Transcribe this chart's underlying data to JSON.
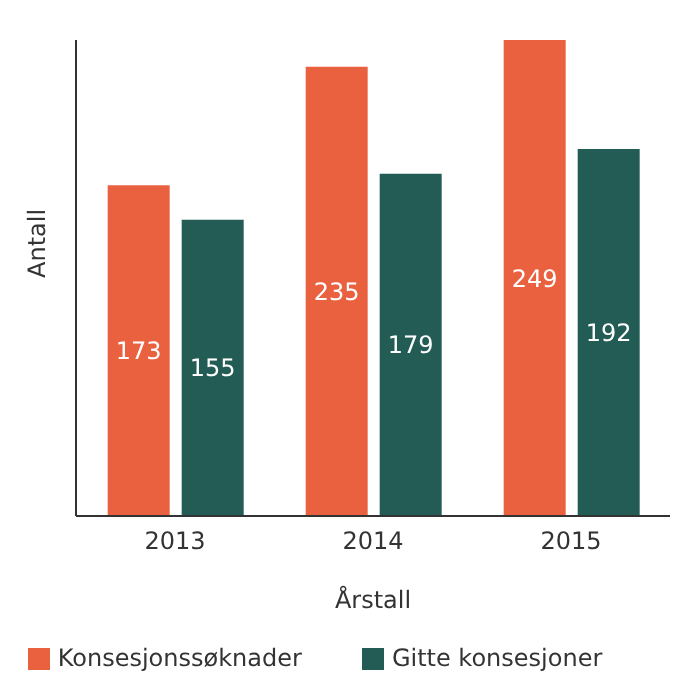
{
  "chart_data": {
    "type": "bar",
    "xlabel": "Årstall",
    "ylabel": "Antall",
    "categories": [
      "2013",
      "2014",
      "2015"
    ],
    "series": [
      {
        "name": "Konsesjonssøknader",
        "color": "#ea6140",
        "values": [
          173,
          235,
          249
        ]
      },
      {
        "name": "Gitte konsesjoner",
        "color": "#235b55",
        "values": [
          155,
          179,
          192
        ]
      }
    ],
    "data_labels": true,
    "legend": "bottom",
    "grid": false
  }
}
